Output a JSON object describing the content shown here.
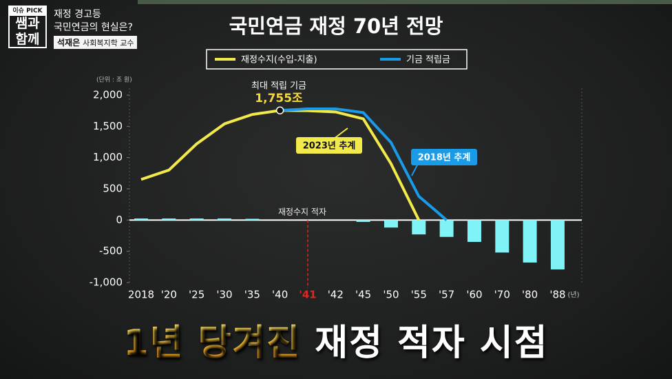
{
  "header": {
    "logo": [
      "이슈 PICK",
      "쌤과",
      "함께"
    ],
    "topic": [
      "재정 경고등",
      "국민연금의 현실은?"
    ],
    "guest_name": "석재은",
    "guest_title": "사회복지학 교수"
  },
  "chart_data": {
    "type": "combo",
    "title": "국민연금 재정 70년 전망",
    "unit_label": "(단위 : 조 원)",
    "x_unit": "(년)",
    "categories": [
      "2018",
      "'20",
      "'25",
      "'30",
      "'35",
      "'40",
      "'41",
      "'42",
      "'45",
      "'50",
      "'55",
      "'57",
      "'60",
      "'70",
      "'80",
      "'88"
    ],
    "highlight": "'41",
    "highlight_color": "#e3261f",
    "series": [
      {
        "type": "bar",
        "color": "#7ff3f5",
        "values": [
          25,
          25,
          25,
          25,
          20,
          null,
          null,
          null,
          -30,
          -120,
          -230,
          -270,
          -350,
          -520,
          -680,
          -790
        ]
      },
      {
        "type": "line",
        "name": "재정수지(수입-지출)",
        "color": "#f2ea4a",
        "values": [
          650,
          800,
          1220,
          1540,
          1690,
          1755,
          1750,
          1730,
          1620,
          900,
          0,
          null,
          null,
          null,
          null,
          null
        ]
      },
      {
        "type": "line",
        "name": "기금 적립금",
        "color": "#1a9be8",
        "values": [
          null,
          null,
          null,
          null,
          null,
          1755,
          1780,
          1780,
          1720,
          1240,
          380,
          0,
          null,
          null,
          null,
          null
        ]
      }
    ],
    "ylim": [
      -1000,
      2000
    ],
    "yticks": [
      {
        "value": 2000,
        "label": "2,000"
      },
      {
        "value": 1500,
        "label": "1,500"
      },
      {
        "value": 1000,
        "label": "1,000"
      },
      500,
      0,
      -500,
      {
        "value": -1000,
        "label": "-1,000"
      }
    ],
    "annotations": [
      "최대 적립 기금",
      "1,755조",
      "2023년 추계",
      "2018년 추계",
      "재정수지 적자"
    ]
  },
  "caption": [
    "1년 당겨진",
    "재정 적자 시점"
  ]
}
